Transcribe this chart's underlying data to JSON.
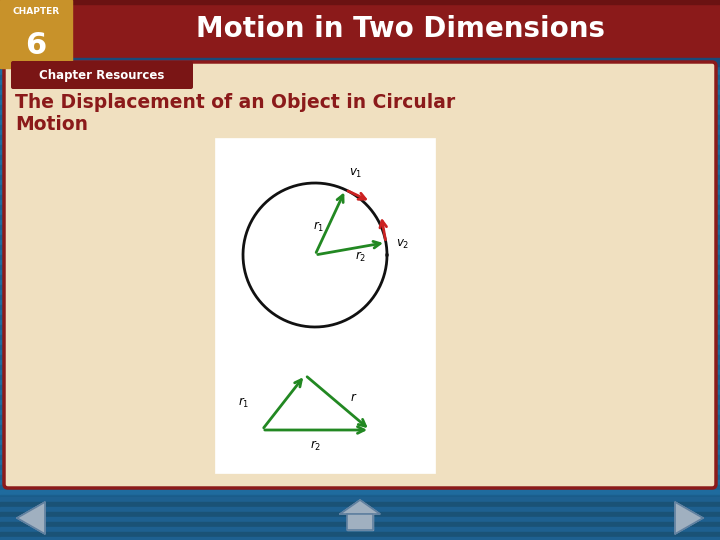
{
  "title": "Motion in Two Dimensions",
  "chapter_label": "CHAPTER",
  "chapter_number": "6",
  "tab_label": "Chapter Resources",
  "slide_title_line1": "The Displacement of an Object in Circular",
  "slide_title_line2": "Motion",
  "bg_stripe1": "#1f6b9e",
  "bg_stripe2": "#1a5f8e",
  "header_bg": "#8b1a1a",
  "header_top_bar": "#6b1212",
  "chapter_box": "#c8922a",
  "tab_bg": "#7a1515",
  "content_bg": "#f0e0c0",
  "content_border": "#8b1a1a",
  "title_color": "#ffffff",
  "slide_title_color": "#8b1a1a",
  "tab_text_color": "#ffffff",
  "arrow_green": "#228822",
  "arrow_red": "#cc2222",
  "circle_color": "#111111",
  "diagram_bg": "#ffffff",
  "nav_color": "#1a5276",
  "nav_arrow_fill": "#a0b0c0",
  "nav_arrow_outline": "#6080a0"
}
